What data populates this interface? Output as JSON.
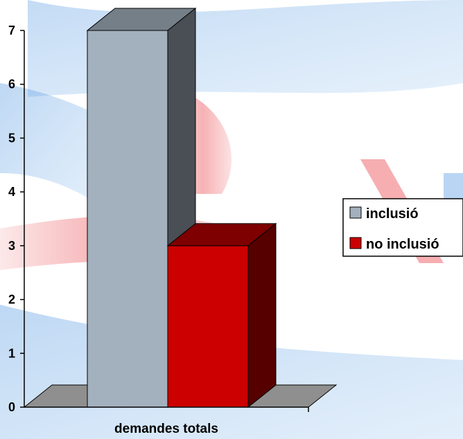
{
  "chart_data": {
    "type": "bar",
    "categories": [
      "demandes totals"
    ],
    "series": [
      {
        "name": "inclusió",
        "values": [
          7
        ],
        "color": "#a3b0bd"
      },
      {
        "name": "no inclusió",
        "values": [
          3
        ],
        "color": "#cc0000"
      }
    ],
    "title": "",
    "xlabel": "",
    "ylabel": "",
    "ylim": [
      0,
      7
    ],
    "yticks": [
      "0",
      "1",
      "2",
      "3",
      "4",
      "5",
      "6",
      "7"
    ],
    "grid": false,
    "legend_position": "right",
    "style": "3d-column"
  },
  "colors": {
    "floor": "#8f8f8f",
    "axis": "#000000",
    "background_logo": [
      "#2f7fd6",
      "#e0202a"
    ]
  }
}
